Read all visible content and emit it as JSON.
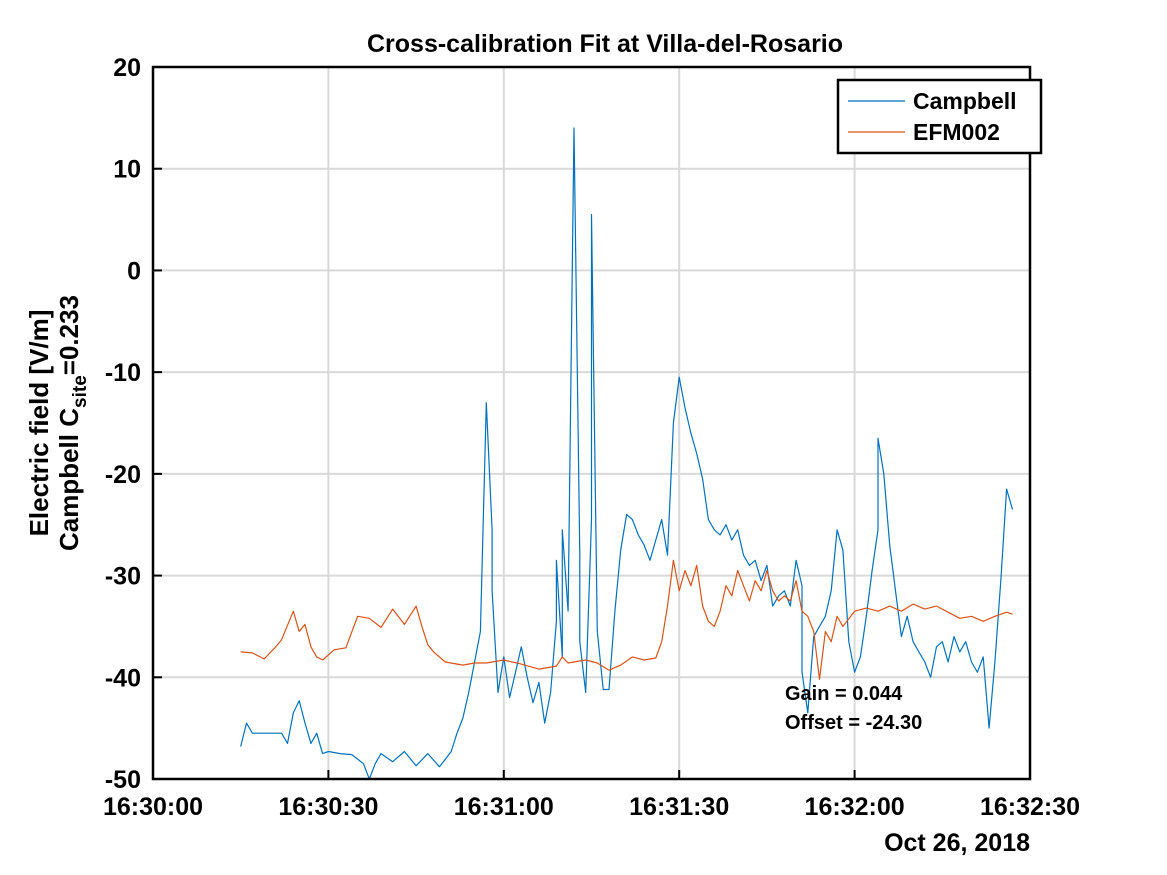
{
  "chart_data": {
    "type": "line",
    "title": "Cross-calibration Fit at Villa-del-Rosario",
    "ylabel": {
      "line1": "Electric field [V/m]",
      "line2_prefix": "Campbell C",
      "line2_sub": "site",
      "line2_suffix": "=0.233"
    },
    "xlabel": "",
    "date_label": "Oct 26, 2018",
    "ylim": [
      -50,
      20
    ],
    "yticks": [
      -50,
      -40,
      -30,
      -20,
      -10,
      0,
      10,
      20
    ],
    "xlim": [
      "16:30:00",
      "16:32:30"
    ],
    "xticks": [
      "16:30:00",
      "16:30:30",
      "16:31:00",
      "16:31:30",
      "16:32:00",
      "16:32:30"
    ],
    "grid": true,
    "legend_position": "top-right",
    "annotations": [
      "Gain = 0.044",
      "Offset = -24.30"
    ],
    "series": [
      {
        "name": "Campbell",
        "color": "#0072BD",
        "points": [
          [
            "16:30:15",
            -46.8
          ],
          [
            "16:30:16",
            -44.5
          ],
          [
            "16:30:17",
            -45.5
          ],
          [
            "16:30:20",
            -45.5
          ],
          [
            "16:30:22",
            -45.5
          ],
          [
            "16:30:23",
            -46.5
          ],
          [
            "16:30:24",
            -43.5
          ],
          [
            "16:30:25",
            -42.3
          ],
          [
            "16:30:26",
            -44.5
          ],
          [
            "16:30:27",
            -46.5
          ],
          [
            "16:30:28",
            -45.5
          ],
          [
            "16:30:29",
            -47.5
          ],
          [
            "16:30:30",
            -47.3
          ],
          [
            "16:30:32",
            -47.5
          ],
          [
            "16:30:34",
            -47.6
          ],
          [
            "16:30:36",
            -48.5
          ],
          [
            "16:30:37",
            -50.0
          ],
          [
            "16:30:38",
            -48.5
          ],
          [
            "16:30:39",
            -47.5
          ],
          [
            "16:30:41",
            -48.3
          ],
          [
            "16:30:43",
            -47.3
          ],
          [
            "16:30:45",
            -48.7
          ],
          [
            "16:30:47",
            -47.5
          ],
          [
            "16:30:49",
            -48.8
          ],
          [
            "16:30:51",
            -47.3
          ],
          [
            "16:30:52",
            -45.5
          ],
          [
            "16:30:53",
            -44.0
          ],
          [
            "16:30:54",
            -41.5
          ],
          [
            "16:30:55",
            -38.5
          ],
          [
            "16:30:56",
            -35.5
          ],
          [
            "16:30:57",
            -13.0
          ],
          [
            "16:30:58",
            -25.5
          ],
          [
            "16:30:58",
            -31.5
          ],
          [
            "16:30:59",
            -41.5
          ],
          [
            "16:31:00",
            -38.0
          ],
          [
            "16:31:01",
            -42.0
          ],
          [
            "16:31:02",
            -39.5
          ],
          [
            "16:31:03",
            -37.0
          ],
          [
            "16:31:04",
            -40.0
          ],
          [
            "16:31:05",
            -42.5
          ],
          [
            "16:31:06",
            -40.5
          ],
          [
            "16:31:07",
            -44.5
          ],
          [
            "16:31:08",
            -41.5
          ],
          [
            "16:31:09",
            -34.5
          ],
          [
            "16:31:09",
            -28.5
          ],
          [
            "16:31:10",
            -38.0
          ],
          [
            "16:31:10",
            -25.5
          ],
          [
            "16:31:11",
            -33.5
          ],
          [
            "16:31:12",
            14.0
          ],
          [
            "16:31:13",
            -28.0
          ],
          [
            "16:31:13",
            -36.5
          ],
          [
            "16:31:14",
            -41.5
          ],
          [
            "16:31:15",
            -24.5
          ],
          [
            "16:31:15",
            5.5
          ],
          [
            "16:31:16",
            -35.5
          ],
          [
            "16:31:17",
            -41.2
          ],
          [
            "16:31:18",
            -41.2
          ],
          [
            "16:31:19",
            -33.5
          ],
          [
            "16:31:20",
            -27.5
          ],
          [
            "16:31:21",
            -24.0
          ],
          [
            "16:31:22",
            -24.5
          ],
          [
            "16:31:23",
            -26.0
          ],
          [
            "16:31:24",
            -27.0
          ],
          [
            "16:31:25",
            -28.5
          ],
          [
            "16:31:26",
            -26.5
          ],
          [
            "16:31:27",
            -24.5
          ],
          [
            "16:31:28",
            -28.0
          ],
          [
            "16:31:29",
            -15.0
          ],
          [
            "16:31:30",
            -10.5
          ],
          [
            "16:31:31",
            -13.5
          ],
          [
            "16:31:32",
            -16.0
          ],
          [
            "16:31:33",
            -18.0
          ],
          [
            "16:31:34",
            -20.5
          ],
          [
            "16:31:35",
            -24.5
          ],
          [
            "16:31:36",
            -25.5
          ],
          [
            "16:31:37",
            -26.0
          ],
          [
            "16:31:38",
            -25.0
          ],
          [
            "16:31:39",
            -26.5
          ],
          [
            "16:31:40",
            -25.5
          ],
          [
            "16:31:41",
            -28.0
          ],
          [
            "16:31:42",
            -29.0
          ],
          [
            "16:31:43",
            -28.5
          ],
          [
            "16:31:44",
            -30.5
          ],
          [
            "16:31:45",
            -29.0
          ],
          [
            "16:31:46",
            -33.0
          ],
          [
            "16:31:47",
            -32.0
          ],
          [
            "16:31:48",
            -31.5
          ],
          [
            "16:31:49",
            -33.0
          ],
          [
            "16:31:50",
            -28.5
          ],
          [
            "16:31:51",
            -31.0
          ],
          [
            "16:31:51",
            -39.5
          ],
          [
            "16:31:52",
            -43.5
          ],
          [
            "16:31:53",
            -36.0
          ],
          [
            "16:31:54",
            -35.0
          ],
          [
            "16:31:55",
            -34.0
          ],
          [
            "16:31:56",
            -31.5
          ],
          [
            "16:31:57",
            -25.5
          ],
          [
            "16:31:58",
            -27.5
          ],
          [
            "16:31:59",
            -36.5
          ],
          [
            "16:32:00",
            -39.5
          ],
          [
            "16:32:01",
            -38.0
          ],
          [
            "16:32:02",
            -34.0
          ],
          [
            "16:32:03",
            -29.5
          ],
          [
            "16:32:04",
            -25.5
          ],
          [
            "16:32:04",
            -16.5
          ],
          [
            "16:32:05",
            -20.0
          ],
          [
            "16:32:06",
            -27.0
          ],
          [
            "16:32:07",
            -31.5
          ],
          [
            "16:32:08",
            -36.0
          ],
          [
            "16:32:09",
            -34.0
          ],
          [
            "16:32:10",
            -36.5
          ],
          [
            "16:32:11",
            -37.5
          ],
          [
            "16:32:12",
            -38.5
          ],
          [
            "16:32:13",
            -40.0
          ],
          [
            "16:32:14",
            -37.0
          ],
          [
            "16:32:15",
            -36.5
          ],
          [
            "16:32:16",
            -38.5
          ],
          [
            "16:32:17",
            -36.0
          ],
          [
            "16:32:18",
            -37.5
          ],
          [
            "16:32:19",
            -36.5
          ],
          [
            "16:32:20",
            -38.5
          ],
          [
            "16:32:21",
            -39.5
          ],
          [
            "16:32:22",
            -38.0
          ],
          [
            "16:32:23",
            -45.0
          ],
          [
            "16:32:24",
            -38.5
          ],
          [
            "16:32:25",
            -30.5
          ],
          [
            "16:32:26",
            -21.5
          ],
          [
            "16:32:27",
            -23.5
          ]
        ]
      },
      {
        "name": "EFM002",
        "color": "#D95319",
        "points": [
          [
            "16:30:15",
            -37.5
          ],
          [
            "16:30:17",
            -37.6
          ],
          [
            "16:30:19",
            -38.2
          ],
          [
            "16:30:21",
            -37.0
          ],
          [
            "16:30:22",
            -36.3
          ],
          [
            "16:30:24",
            -33.5
          ],
          [
            "16:30:25",
            -35.5
          ],
          [
            "16:30:26",
            -34.8
          ],
          [
            "16:30:27",
            -37.0
          ],
          [
            "16:30:28",
            -38.0
          ],
          [
            "16:30:29",
            -38.3
          ],
          [
            "16:30:31",
            -37.3
          ],
          [
            "16:30:33",
            -37.1
          ],
          [
            "16:30:35",
            -34.0
          ],
          [
            "16:30:37",
            -34.2
          ],
          [
            "16:30:39",
            -35.1
          ],
          [
            "16:30:41",
            -33.3
          ],
          [
            "16:30:43",
            -34.8
          ],
          [
            "16:30:45",
            -33.0
          ],
          [
            "16:30:46",
            -35.0
          ],
          [
            "16:30:47",
            -36.8
          ],
          [
            "16:30:48",
            -37.5
          ],
          [
            "16:30:50",
            -38.5
          ],
          [
            "16:30:53",
            -38.8
          ],
          [
            "16:30:55",
            -38.6
          ],
          [
            "16:30:57",
            -38.6
          ],
          [
            "16:31:00",
            -38.3
          ],
          [
            "16:31:03",
            -38.7
          ],
          [
            "16:31:06",
            -39.2
          ],
          [
            "16:31:09",
            -38.9
          ],
          [
            "16:31:10",
            -38.0
          ],
          [
            "16:31:11",
            -38.6
          ],
          [
            "16:31:14",
            -38.3
          ],
          [
            "16:31:16",
            -38.6
          ],
          [
            "16:31:18",
            -39.3
          ],
          [
            "16:31:20",
            -38.8
          ],
          [
            "16:31:22",
            -38.0
          ],
          [
            "16:31:24",
            -38.3
          ],
          [
            "16:31:26",
            -38.1
          ],
          [
            "16:31:27",
            -36.5
          ],
          [
            "16:31:28",
            -33.0
          ],
          [
            "16:31:29",
            -28.5
          ],
          [
            "16:31:30",
            -31.5
          ],
          [
            "16:31:31",
            -29.5
          ],
          [
            "16:31:32",
            -31.0
          ],
          [
            "16:31:33",
            -29.0
          ],
          [
            "16:31:34",
            -33.0
          ],
          [
            "16:31:35",
            -34.5
          ],
          [
            "16:31:36",
            -35.0
          ],
          [
            "16:31:37",
            -33.5
          ],
          [
            "16:31:38",
            -31.0
          ],
          [
            "16:31:39",
            -32.0
          ],
          [
            "16:31:40",
            -29.5
          ],
          [
            "16:31:41",
            -31.0
          ],
          [
            "16:31:42",
            -32.5
          ],
          [
            "16:31:43",
            -30.5
          ],
          [
            "16:31:44",
            -31.5
          ],
          [
            "16:31:45",
            -29.5
          ],
          [
            "16:31:46",
            -31.5
          ],
          [
            "16:31:47",
            -32.5
          ],
          [
            "16:31:48",
            -32.0
          ],
          [
            "16:31:49",
            -32.5
          ],
          [
            "16:31:50",
            -30.5
          ],
          [
            "16:31:51",
            -33.5
          ],
          [
            "16:31:52",
            -34.0
          ],
          [
            "16:31:53",
            -35.5
          ],
          [
            "16:31:54",
            -40.2
          ],
          [
            "16:31:55",
            -35.5
          ],
          [
            "16:31:56",
            -36.5
          ],
          [
            "16:31:57",
            -34.0
          ],
          [
            "16:31:58",
            -35.0
          ],
          [
            "16:32:00",
            -33.5
          ],
          [
            "16:32:02",
            -33.2
          ],
          [
            "16:32:04",
            -33.5
          ],
          [
            "16:32:06",
            -33.0
          ],
          [
            "16:32:08",
            -33.5
          ],
          [
            "16:32:10",
            -32.8
          ],
          [
            "16:32:12",
            -33.3
          ],
          [
            "16:32:14",
            -33.0
          ],
          [
            "16:32:16",
            -33.6
          ],
          [
            "16:32:18",
            -34.2
          ],
          [
            "16:32:20",
            -34.0
          ],
          [
            "16:32:22",
            -34.5
          ],
          [
            "16:32:24",
            -34.0
          ],
          [
            "16:32:26",
            -33.6
          ],
          [
            "16:32:27",
            -33.8
          ]
        ]
      }
    ]
  }
}
